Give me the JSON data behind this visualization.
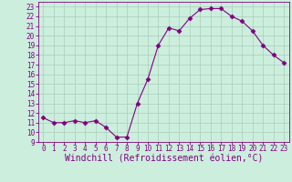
{
  "x": [
    0,
    1,
    2,
    3,
    4,
    5,
    6,
    7,
    8,
    9,
    10,
    11,
    12,
    13,
    14,
    15,
    16,
    17,
    18,
    19,
    20,
    21,
    22,
    23
  ],
  "y": [
    11.5,
    11.0,
    11.0,
    11.2,
    11.0,
    11.2,
    10.5,
    9.5,
    9.5,
    13.0,
    15.5,
    19.0,
    20.8,
    20.5,
    21.8,
    22.7,
    22.8,
    22.8,
    22.0,
    21.5,
    20.5,
    19.0,
    18.0,
    17.2
  ],
  "line_color": "#800080",
  "marker": "D",
  "marker_size": 2.5,
  "bg_color": "#cceedd",
  "grid_color": "#aaccbb",
  "xlabel": "Windchill (Refroidissement éolien,°C)",
  "xlim": [
    -0.5,
    23.5
  ],
  "ylim": [
    9,
    23.5
  ],
  "yticks": [
    9,
    10,
    11,
    12,
    13,
    14,
    15,
    16,
    17,
    18,
    19,
    20,
    21,
    22,
    23
  ],
  "xticks": [
    0,
    1,
    2,
    3,
    4,
    5,
    6,
    7,
    8,
    9,
    10,
    11,
    12,
    13,
    14,
    15,
    16,
    17,
    18,
    19,
    20,
    21,
    22,
    23
  ],
  "tick_label_fontsize": 5.5,
  "xlabel_fontsize": 7.0,
  "xlabel_color": "#800080",
  "tick_label_color": "#800080",
  "spine_color": "#800080",
  "line_width": 0.8
}
